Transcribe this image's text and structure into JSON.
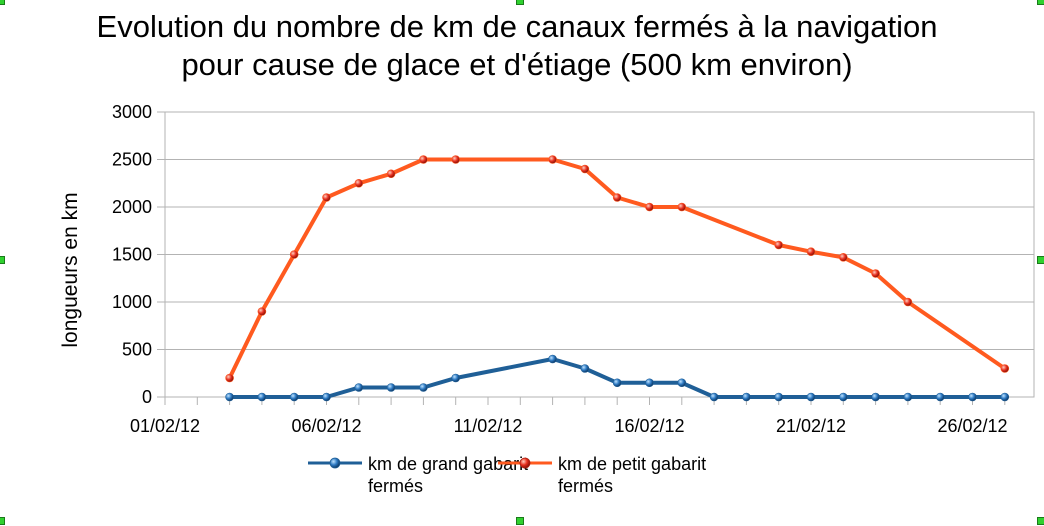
{
  "chart_data": {
    "type": "line",
    "title_line1": "Evolution du nombre de km de canaux fermés à la navigation",
    "title_line2": "pour cause de glace et d'étiage (500 km environ)",
    "ylabel": "longueurs en km",
    "xlabel": "",
    "ylim": [
      0,
      3000
    ],
    "yticks": [
      "0",
      "500",
      "1000",
      "1500",
      "2000",
      "2500",
      "3000"
    ],
    "xticks": [
      "01/02/12",
      "06/02/12",
      "11/02/12",
      "16/02/12",
      "21/02/12",
      "26/02/12"
    ],
    "grid": true,
    "legend_position": "bottom",
    "x": [
      "03/02/12",
      "04/02/12",
      "05/02/12",
      "06/02/12",
      "07/02/12",
      "08/02/12",
      "09/02/12",
      "10/02/12",
      "13/02/12",
      "14/02/12",
      "15/02/12",
      "16/02/12",
      "17/02/12",
      "18/02/12",
      "19/02/12",
      "20/02/12",
      "21/02/12",
      "22/02/12",
      "23/02/12",
      "24/02/12",
      "25/02/12",
      "26/02/12",
      "27/02/12"
    ],
    "series": [
      {
        "name_line1": "km de grand gabarit",
        "name_line2": "fermés",
        "color": "#1f5f97",
        "x": [
          "03/02/12",
          "04/02/12",
          "05/02/12",
          "06/02/12",
          "07/02/12",
          "08/02/12",
          "09/02/12",
          "10/02/12",
          "13/02/12",
          "14/02/12",
          "15/02/12",
          "16/02/12",
          "17/02/12",
          "18/02/12",
          "19/02/12",
          "20/02/12",
          "21/02/12",
          "22/02/12",
          "23/02/12",
          "24/02/12",
          "25/02/12",
          "26/02/12",
          "27/02/12"
        ],
        "values": [
          0,
          0,
          0,
          0,
          100,
          100,
          100,
          200,
          400,
          300,
          150,
          150,
          150,
          0,
          0,
          0,
          0,
          0,
          0,
          0,
          0,
          0,
          0
        ]
      },
      {
        "name_line1": "km de petit gabarit",
        "name_line2": "fermés",
        "color": "#ff5a1f",
        "x": [
          "03/02/12",
          "04/02/12",
          "05/02/12",
          "06/02/12",
          "07/02/12",
          "08/02/12",
          "09/02/12",
          "10/02/12",
          "13/02/12",
          "14/02/12",
          "15/02/12",
          "16/02/12",
          "17/02/12",
          "20/02/12",
          "21/02/12",
          "22/02/12",
          "23/02/12",
          "24/02/12",
          "27/02/12"
        ],
        "values": [
          200,
          900,
          1500,
          2100,
          2250,
          2350,
          2500,
          2500,
          2500,
          2400,
          2100,
          2000,
          2000,
          1600,
          1530,
          1470,
          1300,
          1000,
          300
        ]
      }
    ]
  }
}
